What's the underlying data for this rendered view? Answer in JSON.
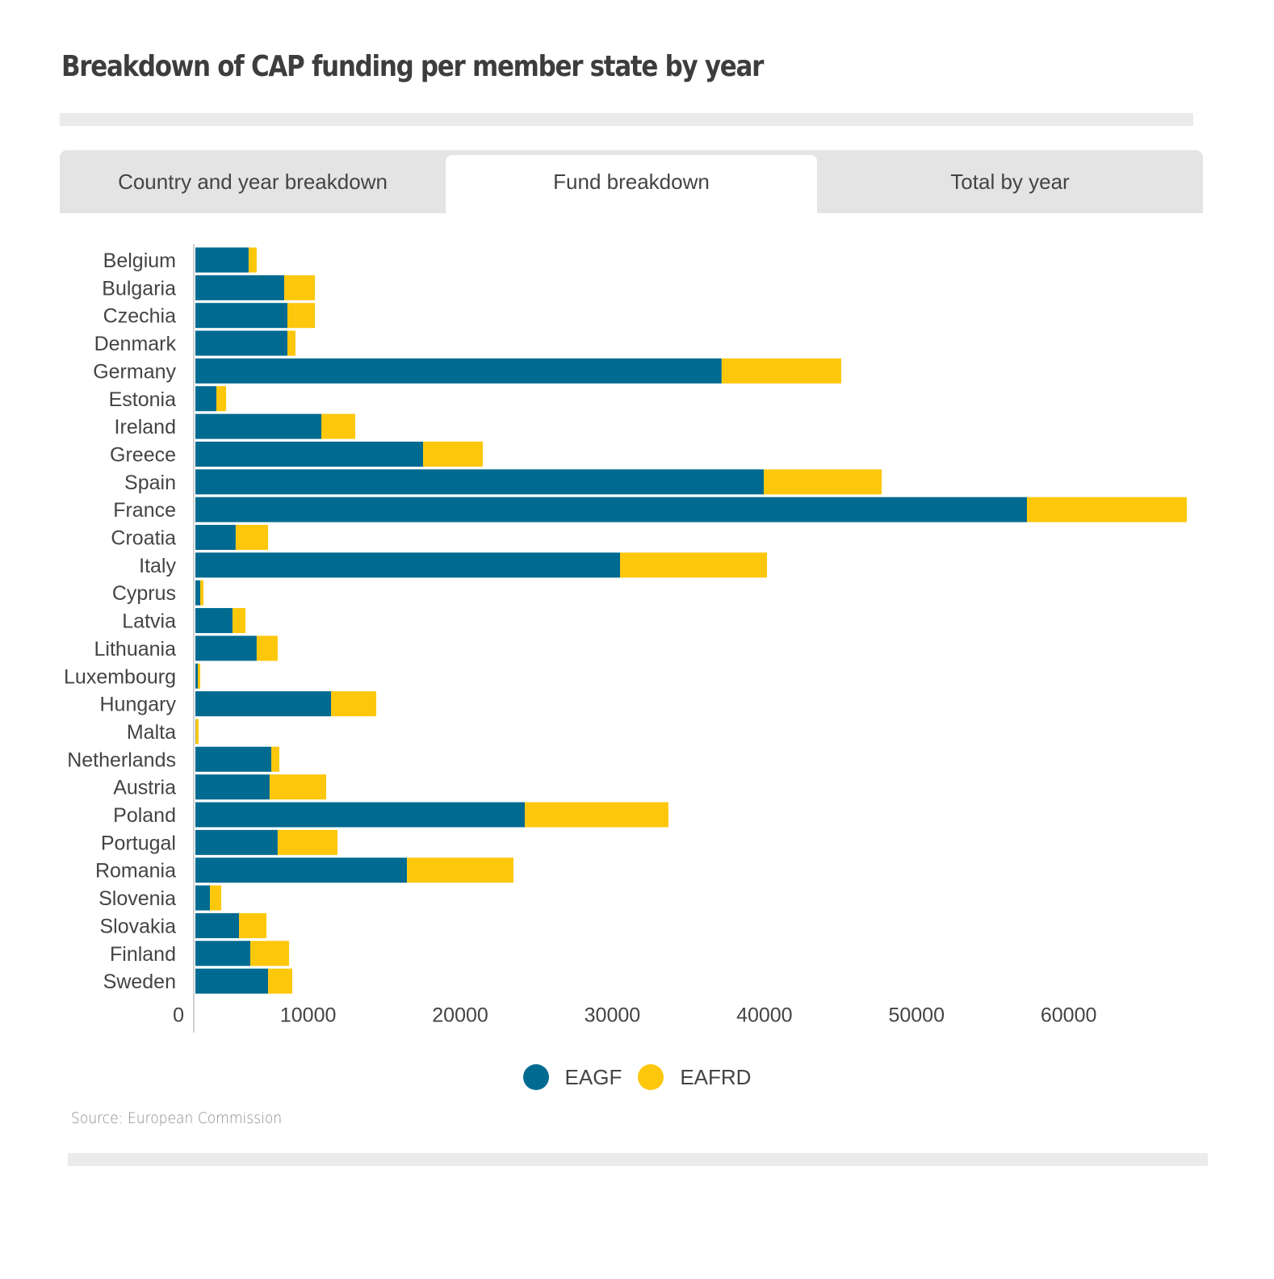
{
  "page": {
    "title": "Breakdown of CAP funding per member state by year",
    "source": "Source: European Commission"
  },
  "tabs": [
    {
      "label": "Country and year breakdown",
      "active": false
    },
    {
      "label": "Fund breakdown",
      "active": true
    },
    {
      "label": "Total by year",
      "active": false
    }
  ],
  "colors": {
    "EAGF": "#006a91",
    "EAFRD": "#fdc70c",
    "axis": "#d0d0d0",
    "text": "#444444"
  },
  "chart_data": {
    "type": "bar",
    "orientation": "horizontal",
    "stacked": true,
    "title": "Breakdown of CAP funding per member state by year",
    "xlabel": "",
    "ylabel": "",
    "xlim": [
      0,
      65000
    ],
    "xticks": [
      0,
      10000,
      20000,
      30000,
      40000,
      50000,
      60000
    ],
    "grid": false,
    "legend_position": "bottom-center",
    "categories": [
      "Belgium",
      "Bulgaria",
      "Czechia",
      "Denmark",
      "Germany",
      "Estonia",
      "Ireland",
      "Greece",
      "Spain",
      "France",
      "Croatia",
      "Italy",
      "Cyprus",
      "Latvia",
      "Lithuania",
      "Luxembourg",
      "Hungary",
      "Malta",
      "Netherlands",
      "Austria",
      "Poland",
      "Portugal",
      "Romania",
      "Slovenia",
      "Slovakia",
      "Finland",
      "Sweden"
    ],
    "series": [
      {
        "name": "EAGF",
        "values": [
          3500,
          5840,
          6050,
          6050,
          34600,
          1380,
          8280,
          14970,
          37370,
          54670,
          2650,
          27920,
          320,
          2440,
          4030,
          160,
          8920,
          20,
          4990,
          4880,
          21660,
          5410,
          13910,
          960,
          2870,
          3610,
          4780
        ]
      },
      {
        "name": "EAFRD",
        "values": [
          530,
          2020,
          1810,
          530,
          7860,
          640,
          2230,
          3930,
          7750,
          10510,
          2130,
          9660,
          210,
          850,
          1380,
          160,
          2970,
          190,
          530,
          3720,
          9440,
          3930,
          7000,
          740,
          1800,
          2550,
          1590
        ]
      }
    ]
  }
}
